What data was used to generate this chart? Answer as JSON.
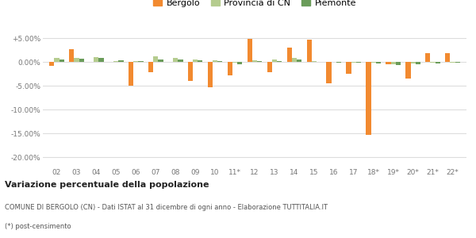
{
  "categories": [
    "02",
    "03",
    "04",
    "05",
    "06",
    "07",
    "08",
    "09",
    "10",
    "11*",
    "12",
    "13",
    "14",
    "15",
    "16",
    "17",
    "18*",
    "19*",
    "20*",
    "21*",
    "22*"
  ],
  "bergolo": [
    -0.8,
    2.7,
    0.0,
    0.0,
    -5.0,
    -2.2,
    0.0,
    -4.0,
    -5.3,
    -2.8,
    4.8,
    -2.2,
    3.0,
    4.7,
    -4.5,
    -2.5,
    -15.3,
    -0.5,
    -3.5,
    1.8,
    1.8
  ],
  "provincia_cn": [
    0.8,
    0.8,
    1.0,
    0.2,
    0.1,
    1.2,
    0.8,
    0.5,
    0.3,
    -0.2,
    0.4,
    0.5,
    0.8,
    0.2,
    0.0,
    -0.1,
    -0.2,
    -0.5,
    -0.3,
    -0.2,
    -0.2
  ],
  "piemonte": [
    0.5,
    0.7,
    0.8,
    0.4,
    0.2,
    0.5,
    0.5,
    0.3,
    0.1,
    -0.5,
    0.1,
    0.2,
    0.5,
    0.0,
    -0.1,
    -0.2,
    -0.3,
    -0.6,
    -0.5,
    -0.3,
    -0.2
  ],
  "bergolo_color": "#f28a30",
  "provincia_color": "#b5cc8e",
  "piemonte_color": "#6a9c5a",
  "background_color": "#ffffff",
  "grid_color": "#dddddd",
  "title": "Variazione percentuale della popolazione",
  "subtitle": "COMUNE DI BERGOLO (CN) - Dati ISTAT al 31 dicembre di ogni anno - Elaborazione TUTTITALIA.IT",
  "footnote": "(*) post-censimento",
  "ylim": [
    -22,
    7
  ],
  "yticks": [
    5,
    0,
    -5,
    -10,
    -15,
    -20
  ],
  "ytick_labels": [
    "+5.00%",
    "0.00%",
    "-5.00%",
    "-10.00%",
    "-15.00%",
    "-20.00%"
  ],
  "legend_labels": [
    "Bergolo",
    "Provincia di CN",
    "Piemonte"
  ],
  "bar_width": 0.25
}
